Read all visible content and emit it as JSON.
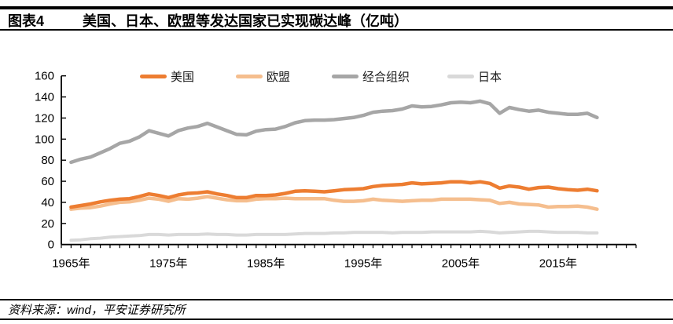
{
  "header": {
    "figure_label": "图表4",
    "title": "美国、日本、欧盟等发达国家已实现碳达峰（亿吨）"
  },
  "footer": {
    "source": "资料来源：wind，平安证券研究所"
  },
  "chart_data": {
    "type": "line",
    "title": "美国、日本、欧盟等发达国家已实现碳达峰（亿吨）",
    "unit": "亿吨",
    "xlabel": "",
    "ylabel": "",
    "ylim": [
      0,
      160
    ],
    "y_tick_step": 20,
    "y_tick_labels": [
      "0",
      "20",
      "40",
      "60",
      "80",
      "100",
      "120",
      "140",
      "160"
    ],
    "x_axis_range": [
      1964,
      2023
    ],
    "x_tick_labels": [
      "1965年",
      "1975年",
      "1985年",
      "1995年",
      "2005年",
      "2015年"
    ],
    "x_tick_label_years": [
      1965,
      1975,
      1985,
      1995,
      2005,
      2015
    ],
    "grid": false,
    "legend_position": "top",
    "draw_order": [
      2,
      3,
      1,
      0
    ],
    "x": [
      1965,
      1966,
      1967,
      1968,
      1969,
      1970,
      1971,
      1972,
      1973,
      1974,
      1975,
      1976,
      1977,
      1978,
      1979,
      1980,
      1981,
      1982,
      1983,
      1984,
      1985,
      1986,
      1987,
      1988,
      1989,
      1990,
      1991,
      1992,
      1993,
      1994,
      1995,
      1996,
      1997,
      1998,
      1999,
      2000,
      2001,
      2002,
      2003,
      2004,
      2005,
      2006,
      2007,
      2008,
      2009,
      2010,
      2011,
      2012,
      2013,
      2014,
      2015,
      2016,
      2017,
      2018,
      2019
    ],
    "series": [
      {
        "id": "us",
        "name": "美国",
        "color": "#ED7D31",
        "width": 4.5,
        "values": [
          35.5,
          37,
          38.5,
          40.5,
          42,
          43,
          43.5,
          45.5,
          48,
          46.5,
          44.5,
          47,
          48.5,
          49,
          50,
          48,
          46.5,
          44.5,
          44.5,
          46.5,
          46.5,
          47,
          48.5,
          50.5,
          51,
          50.5,
          50,
          51,
          52,
          52.5,
          53,
          55,
          56,
          56.5,
          57,
          58.5,
          57.5,
          58,
          58.5,
          59.5,
          59.5,
          58.5,
          59.5,
          58,
          53.5,
          55.5,
          54.5,
          52.5,
          54,
          54.5,
          53,
          52,
          51.5,
          52.5,
          51
        ]
      },
      {
        "id": "eu",
        "name": "欧盟",
        "color": "#F5BE8E",
        "width": 4.5,
        "values": [
          33.5,
          34.5,
          35,
          36.5,
          38.5,
          40,
          40.5,
          42,
          44,
          43,
          41,
          43.5,
          43,
          44,
          45.5,
          44,
          42.5,
          41.5,
          41.5,
          43,
          43.5,
          43.5,
          44,
          43.5,
          43.5,
          43.5,
          43.5,
          42,
          41,
          41,
          41.5,
          43,
          42,
          41.5,
          41,
          41.5,
          42,
          42,
          43,
          43,
          43,
          43,
          42.5,
          42,
          39,
          40,
          38.5,
          38,
          37.5,
          35.5,
          36,
          36,
          36.5,
          35.5,
          33.5
        ]
      },
      {
        "id": "oecd",
        "name": "经合组织",
        "color": "#A6A6A6",
        "width": 4.5,
        "values": [
          78,
          81,
          83,
          87,
          91,
          96,
          98,
          102,
          108,
          105.5,
          103,
          108,
          110.5,
          112,
          115,
          111.5,
          108,
          104.5,
          104,
          107.5,
          109,
          109.5,
          112,
          115.5,
          117.5,
          118,
          118,
          118.5,
          119.5,
          120.5,
          122.5,
          125.5,
          126.5,
          127,
          128.5,
          131.5,
          130.5,
          131,
          132.5,
          134.5,
          135,
          134.5,
          136,
          133.5,
          124.5,
          130,
          128,
          126.5,
          127.5,
          125.5,
          124.5,
          123.5,
          123.5,
          124.5,
          120.5
        ]
      },
      {
        "id": "japan",
        "name": "日本",
        "color": "#D9D9D9",
        "width": 4,
        "values": [
          4,
          4.5,
          5.5,
          6,
          7,
          7.5,
          8,
          8.5,
          9.5,
          9.5,
          9,
          9.5,
          9.5,
          9.5,
          10,
          9.5,
          9.5,
          9,
          9,
          9.5,
          9.5,
          9.5,
          9.5,
          10,
          10.5,
          10.5,
          10.5,
          11,
          11,
          11.5,
          11.5,
          11.5,
          11.5,
          11,
          11.5,
          11.5,
          11.5,
          12,
          12,
          12,
          12,
          12,
          12.5,
          12,
          11,
          11.5,
          12,
          12.5,
          12.5,
          12,
          11.5,
          11.5,
          11.5,
          11,
          11
        ]
      }
    ]
  }
}
